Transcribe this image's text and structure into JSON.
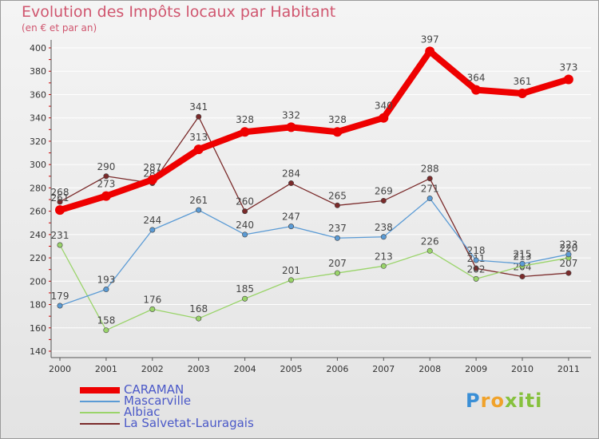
{
  "title": "Evolution des Impôts locaux par Habitant",
  "subtitle": "(en € et par an)",
  "logo": {
    "letters": [
      "P",
      "r",
      "o",
      "x",
      "i",
      "t",
      "i"
    ],
    "colors": [
      "#3a8fd6",
      "#f0a22a",
      "#f0a22a",
      "#86c13d",
      "#86c13d",
      "#86c13d",
      "#86c13d"
    ]
  },
  "chart_data": {
    "type": "line",
    "categories": [
      "2000",
      "2001",
      "2002",
      "2003",
      "2004",
      "2005",
      "2006",
      "2007",
      "2008",
      "2009",
      "2010",
      "2011"
    ],
    "ylim": [
      140,
      400
    ],
    "yticks": [
      "140",
      "160",
      "180",
      "200",
      "220",
      "240",
      "260",
      "280",
      "300",
      "320",
      "340",
      "360",
      "380",
      "400"
    ],
    "grid": "horizontal",
    "legend_position": "bottom-left",
    "series": [
      {
        "name": "CARAMAN",
        "color": "#ee0000",
        "values": [
          261,
          273,
          287,
          313,
          328,
          332,
          328,
          340,
          397,
          364,
          361,
          373
        ]
      },
      {
        "name": "Mascarville",
        "color": "#5b9bd5",
        "values": [
          179,
          193,
          244,
          261,
          240,
          247,
          237,
          238,
          271,
          218,
          215,
          223
        ]
      },
      {
        "name": "Albiac",
        "color": "#9ad46a",
        "values": [
          231,
          158,
          176,
          168,
          185,
          201,
          207,
          213,
          226,
          202,
          213,
          220
        ]
      },
      {
        "name": "La Salvetat-Lauragais",
        "color": "#7a2a2a",
        "values": [
          268,
          290,
          284,
          341,
          260,
          284,
          265,
          269,
          288,
          211,
          204,
          207
        ]
      }
    ]
  }
}
